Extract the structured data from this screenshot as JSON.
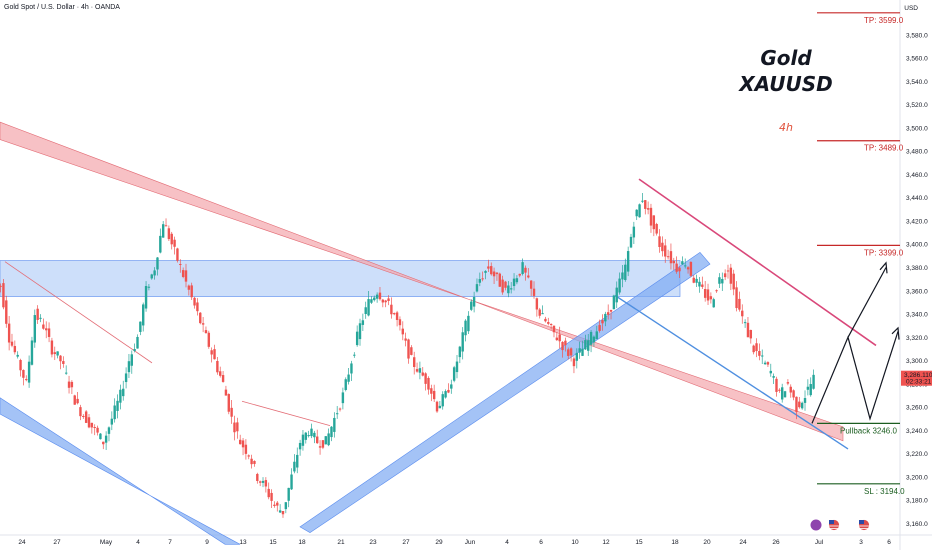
{
  "header": {
    "symbol": "Gold Spot / U.S. Dollar · 4h · OANDA",
    "currency": "USD"
  },
  "annotations": {
    "title_line1": "Gold",
    "title_line2": "XAUUSD",
    "timeframe": "4h"
  },
  "colors": {
    "bull": "#26a69a",
    "bear": "#ef5350",
    "tp_line": "#c62828",
    "pullback_line": "#1b5e20",
    "sl_line": "#1b5e20",
    "zone": "#90b8f5",
    "red_channel": "#f4a7ad",
    "blue_channel": "#7eaaf2",
    "downtrend": "#d9487a"
  },
  "chart_data": {
    "type": "candlestick",
    "title": "Gold Spot / U.S. Dollar · 4h · OANDA",
    "price_unit": "USD",
    "ylim": [
      3150,
      3610
    ],
    "y_ticks": [
      "3,160.0",
      "3,180.0",
      "3,200.0",
      "3,220.0",
      "3,240.0",
      "3,260.0",
      "3,280.0",
      "3,300.0",
      "3,320.0",
      "3,340.0",
      "3,360.0",
      "3,380.0",
      "3,400.0",
      "3,420.0",
      "3,440.0",
      "3,460.0",
      "3,480.0",
      "3,500.0",
      "3,520.0",
      "3,540.0",
      "3,560.0",
      "3,580.0"
    ],
    "x_ticks": [
      "24",
      "27",
      "May",
      "4",
      "7",
      "9",
      "13",
      "15",
      "18",
      "21",
      "23",
      "27",
      "29",
      "Jun",
      "4",
      "6",
      "10",
      "12",
      "15",
      "18",
      "20",
      "24",
      "26",
      "Jul",
      "3",
      "6"
    ],
    "current_price": "3,286.110",
    "countdown": "02:33:21",
    "levels": [
      {
        "label": "TP: 3599.0",
        "value": 3599.0,
        "kind": "tp"
      },
      {
        "label": "TP: 3489.0",
        "value": 3489.0,
        "kind": "tp"
      },
      {
        "label": "TP: 3399.0",
        "value": 3399.0,
        "kind": "tp"
      },
      {
        "label": "Pullback 3246.0",
        "value": 3246.0,
        "kind": "pullback"
      },
      {
        "label": "SL : 3194.0",
        "value": 3194.0,
        "kind": "sl"
      }
    ],
    "path_closes": [
      3365,
      3320,
      3300,
      3280,
      3340,
      3330,
      3310,
      3300,
      3280,
      3260,
      3250,
      3240,
      3230,
      3250,
      3270,
      3300,
      3320,
      3360,
      3380,
      3420,
      3400,
      3380,
      3360,
      3340,
      3320,
      3300,
      3280,
      3250,
      3230,
      3220,
      3200,
      3190,
      3175,
      3170,
      3200,
      3230,
      3240,
      3230,
      3230,
      3250,
      3270,
      3300,
      3330,
      3350,
      3360,
      3350,
      3340,
      3320,
      3300,
      3290,
      3280,
      3260,
      3270,
      3290,
      3320,
      3350,
      3370,
      3380,
      3370,
      3360,
      3370,
      3380,
      3360,
      3340,
      3330,
      3320,
      3310,
      3300,
      3310,
      3320,
      3330,
      3340,
      3360,
      3380,
      3420,
      3440,
      3420,
      3400,
      3390,
      3380,
      3385,
      3370,
      3360,
      3350,
      3370,
      3380,
      3350,
      3330,
      3310,
      3300,
      3290,
      3270,
      3280,
      3260,
      3270,
      3285
    ]
  }
}
